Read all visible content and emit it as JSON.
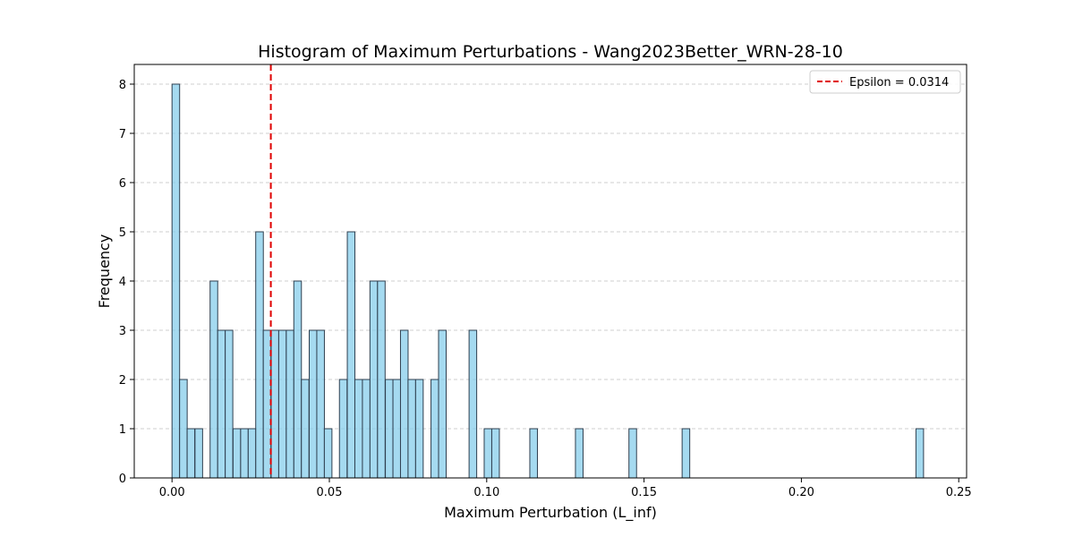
{
  "chart_data": {
    "type": "bar",
    "title": "Histogram of Maximum Perturbations - Wang2023Better_WRN-28-10",
    "xlabel": "Maximum Perturbation (L_inf)",
    "ylabel": "Frequency",
    "xlim": [
      -0.012,
      0.2525
    ],
    "ylim": [
      0,
      8.4
    ],
    "bin_width": 0.00242,
    "xticks": [
      0.0,
      0.05,
      0.1,
      0.15,
      0.2,
      0.25
    ],
    "xtick_labels": [
      "0.00",
      "0.05",
      "0.10",
      "0.15",
      "0.20",
      "0.25"
    ],
    "yticks": [
      0,
      1,
      2,
      3,
      4,
      5,
      6,
      7,
      8
    ],
    "ytick_labels": [
      "0",
      "1",
      "2",
      "3",
      "4",
      "5",
      "6",
      "7",
      "8"
    ],
    "grid": "y-dashed",
    "legend": {
      "placement": "top-right",
      "entries": [
        "Epsilon = 0.0314"
      ]
    },
    "vline": {
      "x": 0.0314,
      "label": "Epsilon = 0.0314",
      "color": "#e00000",
      "style": "dashed"
    },
    "bar_color": "#87ceeb",
    "bar_edge_color": "#2f3f4f",
    "bins_left": [
      0.0,
      0.0024,
      0.0048,
      0.0073,
      0.0121,
      0.0145,
      0.0169,
      0.0194,
      0.0218,
      0.0242,
      0.0266,
      0.029,
      0.0315,
      0.0339,
      0.0363,
      0.0387,
      0.0411,
      0.0436,
      0.046,
      0.0484,
      0.0532,
      0.0557,
      0.0581,
      0.0605,
      0.0629,
      0.0653,
      0.0678,
      0.0702,
      0.0726,
      0.075,
      0.0774,
      0.0823,
      0.0847,
      0.0944,
      0.0992,
      0.1016,
      0.1137,
      0.1282,
      0.1452,
      0.1621,
      0.2364
    ],
    "counts": [
      8,
      2,
      1,
      1,
      4,
      3,
      3,
      1,
      1,
      1,
      5,
      3,
      3,
      3,
      3,
      4,
      2,
      3,
      3,
      1,
      2,
      5,
      2,
      2,
      4,
      4,
      2,
      2,
      3,
      2,
      2,
      2,
      3,
      3,
      1,
      1,
      1,
      1,
      1,
      1,
      1
    ]
  }
}
